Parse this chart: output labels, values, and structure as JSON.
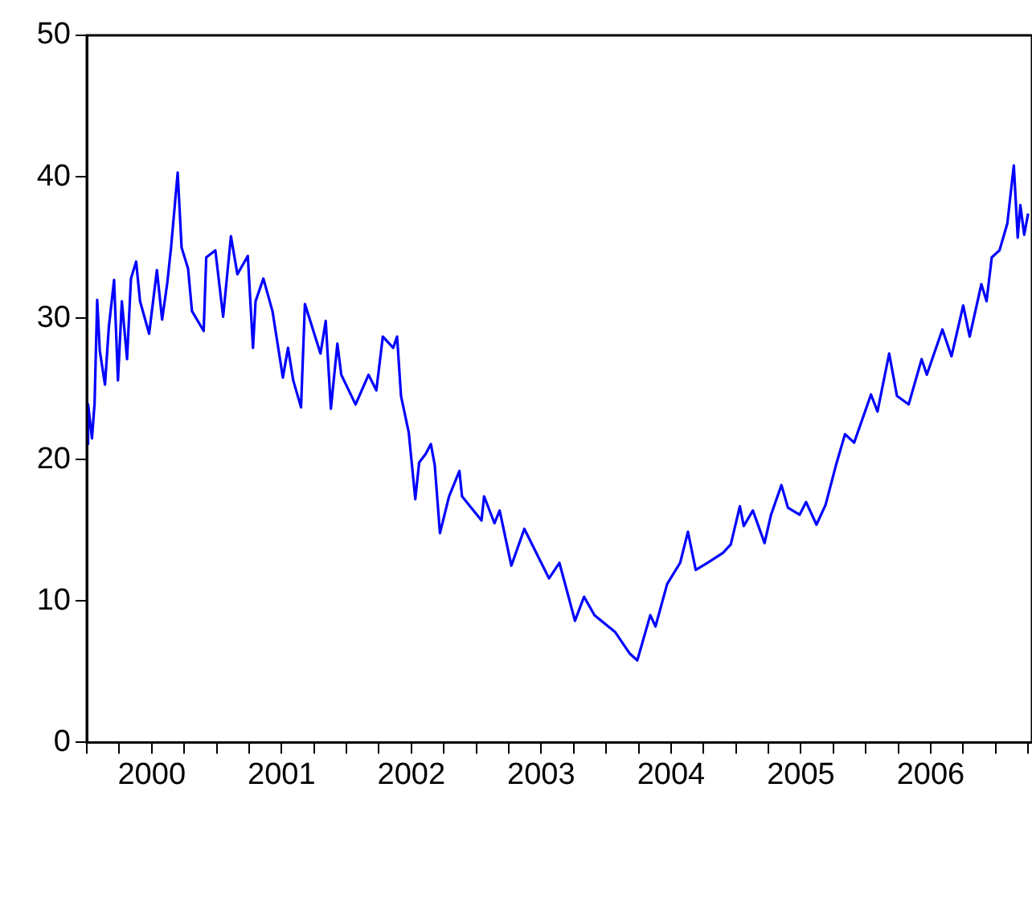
{
  "chart_data": {
    "type": "line",
    "color": "#0000ff",
    "legend": false,
    "grid": false,
    "marker": "none",
    "line_style": "solid",
    "x": [
      2000.0,
      2000.01,
      2000.04,
      2000.06,
      2000.08,
      2000.1,
      2000.14,
      2000.17,
      2000.21,
      2000.24,
      2000.27,
      2000.31,
      2000.34,
      2000.38,
      2000.41,
      2000.48,
      2000.54,
      2000.58,
      2000.62,
      2000.65,
      2000.7,
      2000.73,
      2000.78,
      2000.81,
      2000.9,
      2000.92,
      2000.99,
      2001.05,
      2001.11,
      2001.16,
      2001.24,
      2001.28,
      2001.3,
      2001.36,
      2001.43,
      2001.51,
      2001.55,
      2001.59,
      2001.65,
      2001.68,
      2001.8,
      2001.84,
      2001.88,
      2001.93,
      2001.96,
      2002.07,
      2002.17,
      2002.23,
      2002.28,
      2002.36,
      2002.39,
      2002.42,
      2002.48,
      2002.53,
      2002.56,
      2002.61,
      2002.65,
      2002.68,
      2002.72,
      2002.79,
      2002.87,
      2002.89,
      2003.04,
      2003.06,
      2003.14,
      2003.18,
      2003.27,
      2003.37,
      2003.5,
      2003.56,
      2003.64,
      2003.76,
      2003.83,
      2003.91,
      2004.07,
      2004.18,
      2004.24,
      2004.34,
      2004.38,
      2004.47,
      2004.57,
      2004.63,
      2004.69,
      2004.78,
      2004.9,
      2004.96,
      2005.03,
      2005.06,
      2005.13,
      2005.22,
      2005.27,
      2005.35,
      2005.4,
      2005.49,
      2005.54,
      2005.62,
      2005.69,
      2005.77,
      2005.84,
      2005.91,
      2006.04,
      2006.09,
      2006.18,
      2006.24,
      2006.33,
      2006.43,
      2006.47,
      2006.59,
      2006.66,
      2006.75,
      2006.8,
      2006.89,
      2006.93,
      2006.97,
      2007.03,
      2007.09,
      2007.14,
      2007.17,
      2007.19,
      2007.22,
      2007.25
    ],
    "values": [
      21.1,
      23.9,
      21.5,
      24.0,
      31.3,
      27.7,
      25.3,
      29.4,
      32.7,
      25.6,
      31.2,
      27.1,
      32.8,
      34.0,
      31.2,
      28.9,
      33.4,
      29.9,
      32.5,
      35.1,
      40.3,
      35.0,
      33.5,
      30.5,
      29.1,
      34.3,
      34.8,
      30.1,
      35.8,
      33.1,
      34.4,
      27.9,
      31.2,
      32.8,
      30.5,
      25.8,
      27.9,
      25.6,
      23.7,
      31.0,
      27.5,
      29.8,
      23.6,
      28.2,
      26.0,
      23.9,
      26.0,
      24.9,
      28.7,
      27.9,
      28.7,
      24.5,
      21.9,
      17.2,
      19.8,
      20.4,
      21.1,
      19.6,
      14.8,
      17.4,
      19.2,
      17.4,
      15.7,
      17.4,
      15.5,
      16.4,
      12.5,
      15.1,
      12.7,
      11.6,
      12.7,
      8.6,
      10.3,
      9.0,
      7.8,
      6.3,
      5.8,
      9.0,
      8.2,
      11.2,
      12.7,
      14.9,
      12.2,
      12.7,
      13.4,
      14.0,
      16.7,
      15.3,
      16.4,
      14.1,
      16.1,
      18.2,
      16.6,
      16.1,
      17.0,
      15.4,
      16.8,
      19.6,
      21.8,
      21.2,
      24.6,
      23.4,
      27.5,
      24.5,
      23.9,
      27.1,
      26.0,
      29.2,
      27.3,
      30.9,
      28.7,
      32.4,
      31.2,
      34.3,
      34.8,
      36.7,
      40.8,
      35.7,
      38.0,
      35.9,
      37.4
    ],
    "xlim": [
      2000,
      2007.28
    ],
    "xticks": [
      {
        "value": 2000,
        "label": null
      },
      {
        "value": 2000.25,
        "label": null
      },
      {
        "value": 2000.5,
        "label": "2000"
      },
      {
        "value": 2000.75,
        "label": null
      },
      {
        "value": 2001,
        "label": null
      },
      {
        "value": 2001.25,
        "label": null
      },
      {
        "value": 2001.5,
        "label": "2001"
      },
      {
        "value": 2001.75,
        "label": null
      },
      {
        "value": 2002,
        "label": null
      },
      {
        "value": 2002.25,
        "label": null
      },
      {
        "value": 2002.5,
        "label": "2002"
      },
      {
        "value": 2002.75,
        "label": null
      },
      {
        "value": 2003,
        "label": null
      },
      {
        "value": 2003.25,
        "label": null
      },
      {
        "value": 2003.5,
        "label": "2003"
      },
      {
        "value": 2003.75,
        "label": null
      },
      {
        "value": 2004,
        "label": null
      },
      {
        "value": 2004.25,
        "label": null
      },
      {
        "value": 2004.5,
        "label": "2004"
      },
      {
        "value": 2004.75,
        "label": null
      },
      {
        "value": 2005,
        "label": null
      },
      {
        "value": 2005.25,
        "label": null
      },
      {
        "value": 2005.5,
        "label": "2005"
      },
      {
        "value": 2005.75,
        "label": null
      },
      {
        "value": 2006,
        "label": null
      },
      {
        "value": 2006.25,
        "label": null
      },
      {
        "value": 2006.5,
        "label": "2006"
      },
      {
        "value": 2006.75,
        "label": null
      },
      {
        "value": 2007,
        "label": null
      },
      {
        "value": 2007.25,
        "label": null
      }
    ],
    "ylim": [
      0,
      50
    ],
    "yticks": [
      0,
      10,
      20,
      30,
      40,
      50
    ]
  }
}
